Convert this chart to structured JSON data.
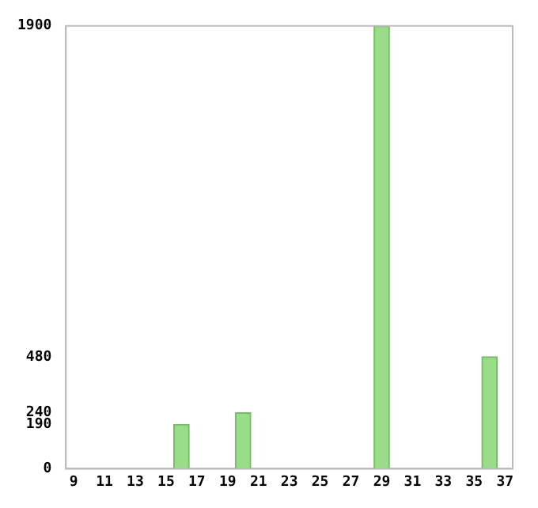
{
  "chart_data": {
    "type": "bar",
    "categories": [
      "9",
      null,
      "11",
      null,
      "13",
      null,
      "15",
      null,
      "17",
      null,
      "19",
      null,
      "21",
      null,
      "23",
      null,
      "25",
      null,
      "27",
      null,
      "29",
      null,
      "31",
      null,
      "33",
      null,
      "35",
      null,
      "37"
    ],
    "values": [
      null,
      null,
      null,
      null,
      null,
      null,
      null,
      190,
      null,
      null,
      null,
      240,
      null,
      null,
      null,
      null,
      null,
      null,
      null,
      null,
      1900,
      null,
      null,
      null,
      null,
      null,
      null,
      480,
      null
    ],
    "color": "#99dd88",
    "ylim": [
      0,
      1900
    ],
    "yticks": [
      0,
      190,
      240,
      480,
      1900
    ],
    "grid": false
  }
}
